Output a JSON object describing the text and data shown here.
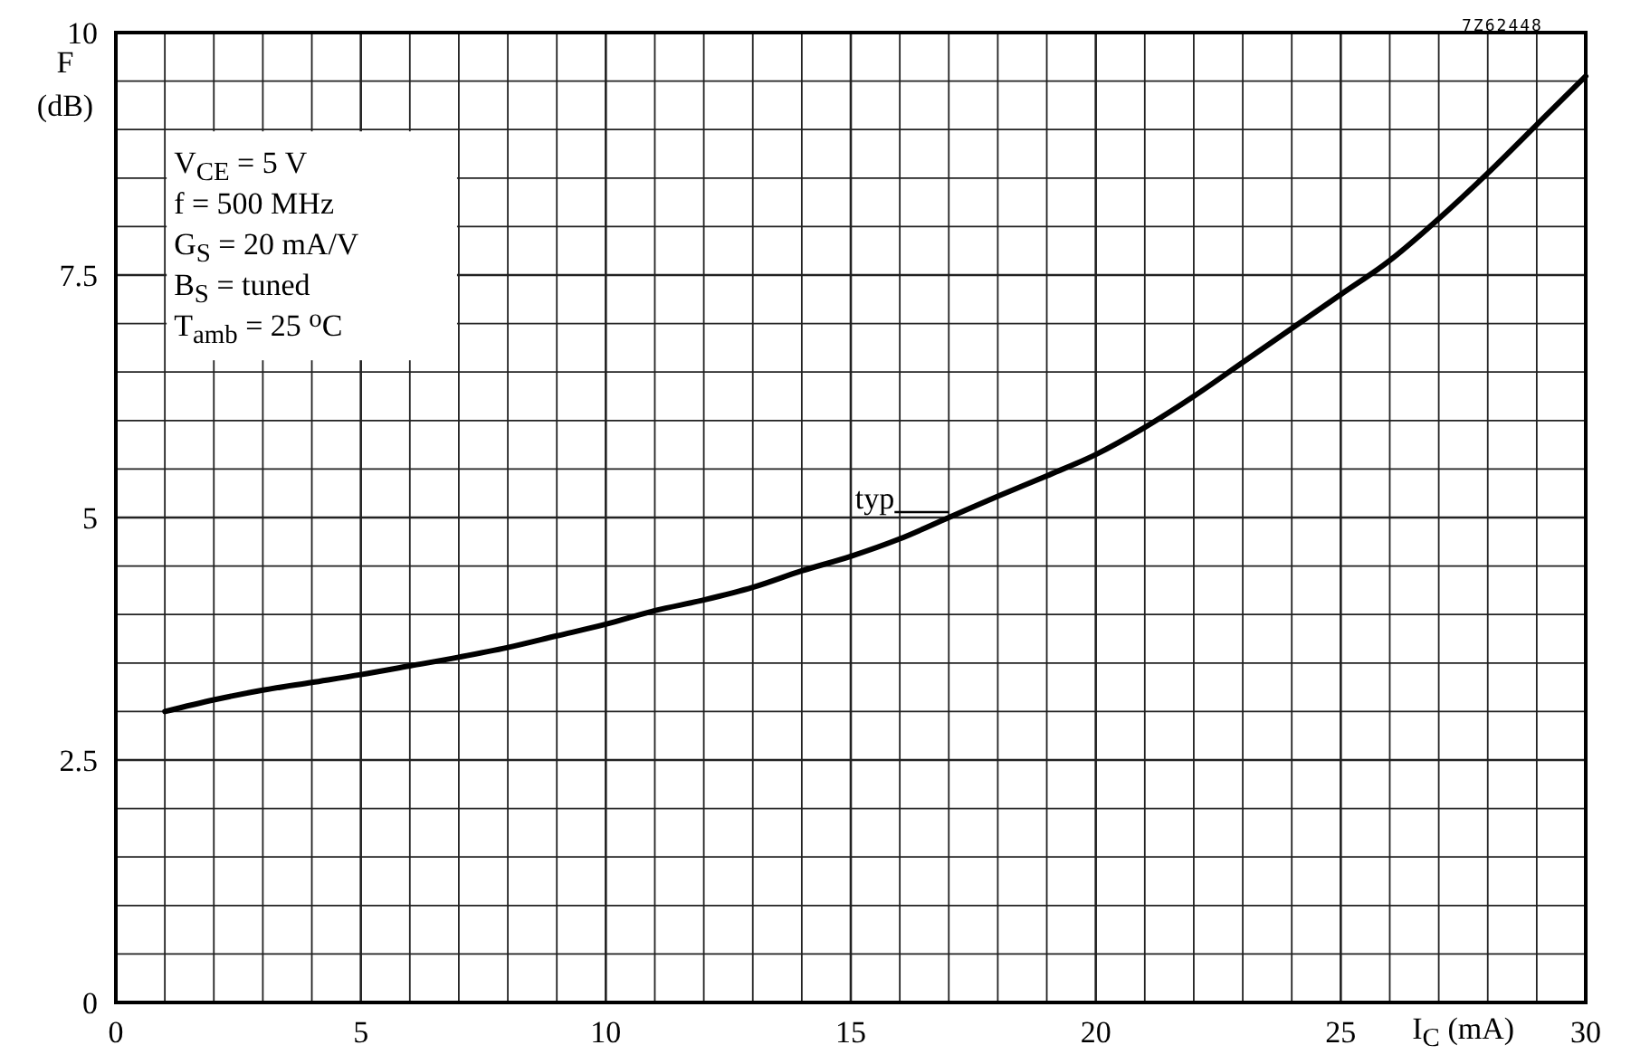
{
  "chart_data": {
    "type": "line",
    "ylabel": "F (dB)",
    "xlabel": "I$_{C}$ (mA)",
    "xlim": [
      0,
      30
    ],
    "ylim": [
      0,
      10
    ],
    "xticks": [
      0,
      {
        "value": 1,
        "label": null
      },
      {
        "value": 2,
        "label": null
      },
      {
        "value": 3,
        "label": null
      },
      {
        "value": 4,
        "label": null
      },
      5,
      {
        "value": 6,
        "label": null
      },
      {
        "value": 7,
        "label": null
      },
      {
        "value": 8,
        "label": null
      },
      {
        "value": 9,
        "label": null
      },
      10,
      {
        "value": 11,
        "label": null
      },
      {
        "value": 12,
        "label": null
      },
      {
        "value": 13,
        "label": null
      },
      {
        "value": 14,
        "label": null
      },
      15,
      {
        "value": 16,
        "label": null
      },
      {
        "value": 17,
        "label": null
      },
      {
        "value": 18,
        "label": null
      },
      {
        "value": 19,
        "label": null
      },
      20,
      {
        "value": 21,
        "label": null
      },
      {
        "value": 22,
        "label": null
      },
      {
        "value": 23,
        "label": null
      },
      {
        "value": 24,
        "label": null
      },
      25,
      {
        "value": 26,
        "label": null
      },
      {
        "value": 27,
        "label": null
      },
      {
        "value": 28,
        "label": null
      },
      {
        "value": 29,
        "label": null
      },
      30
    ],
    "yticks": [
      0,
      {
        "value": 0.5,
        "label": null
      },
      {
        "value": 1,
        "label": null
      },
      {
        "value": 1.5,
        "label": null
      },
      {
        "value": 2,
        "label": null
      },
      2.5,
      {
        "value": 3,
        "label": null
      },
      {
        "value": 3.5,
        "label": null
      },
      {
        "value": 4,
        "label": null
      },
      {
        "value": 4.5,
        "label": null
      },
      5,
      {
        "value": 5.5,
        "label": null
      },
      {
        "value": 6,
        "label": null
      },
      {
        "value": 6.5,
        "label": null
      },
      {
        "value": 7,
        "label": null
      },
      7.5,
      {
        "value": 8,
        "label": null
      },
      {
        "value": 8.5,
        "label": null
      },
      {
        "value": 9,
        "label": null
      },
      {
        "value": 9.5,
        "label": null
      },
      10
    ],
    "grid": true,
    "legend": "center",
    "marker": "none",
    "line_style": "solid",
    "series": [
      {
        "name": "typ",
        "color": "#000000",
        "x": [
          1,
          2,
          3,
          4,
          5,
          6,
          7,
          8,
          9,
          10,
          11,
          12,
          13,
          14,
          15,
          16,
          17,
          18,
          19,
          20,
          21,
          22,
          23,
          24,
          25,
          26,
          27,
          28,
          29,
          30
        ],
        "values": [
          3.0,
          3.12,
          3.22,
          3.3,
          3.38,
          3.47,
          3.56,
          3.66,
          3.78,
          3.9,
          4.04,
          4.15,
          4.28,
          4.45,
          4.6,
          4.78,
          5.0,
          5.22,
          5.43,
          5.65,
          5.93,
          6.25,
          6.6,
          6.95,
          7.3,
          7.65,
          8.08,
          8.55,
          9.05,
          9.55
        ]
      }
    ],
    "annotations": [
      "V$_{CE}$ = 5 V",
      "f = 500 MHz",
      "G$_{S}$ = 20 mA/V",
      "B$_{S}$ = tuned",
      "T$_{amb}$ = 25 $^{o}$C",
      "7Z62448"
    ]
  }
}
